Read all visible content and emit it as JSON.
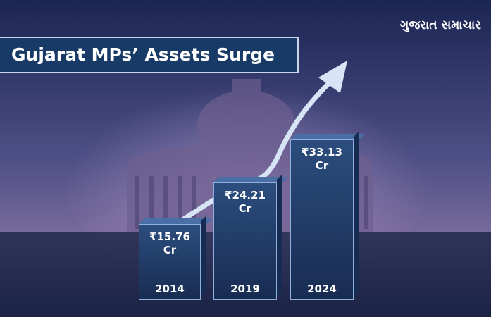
{
  "brand": "ગુજરાત સમાચાર",
  "chart_data": {
    "type": "bar",
    "title": "Gujarat MPs’ Assets Surge",
    "categories": [
      "2014",
      "2019",
      "2024"
    ],
    "values": [
      15.76,
      24.21,
      33.13
    ],
    "value_labels": [
      "₹15.76 Cr",
      "₹24.21 Cr",
      "₹33.13 Cr"
    ],
    "color": "#2c4d7e"
  }
}
